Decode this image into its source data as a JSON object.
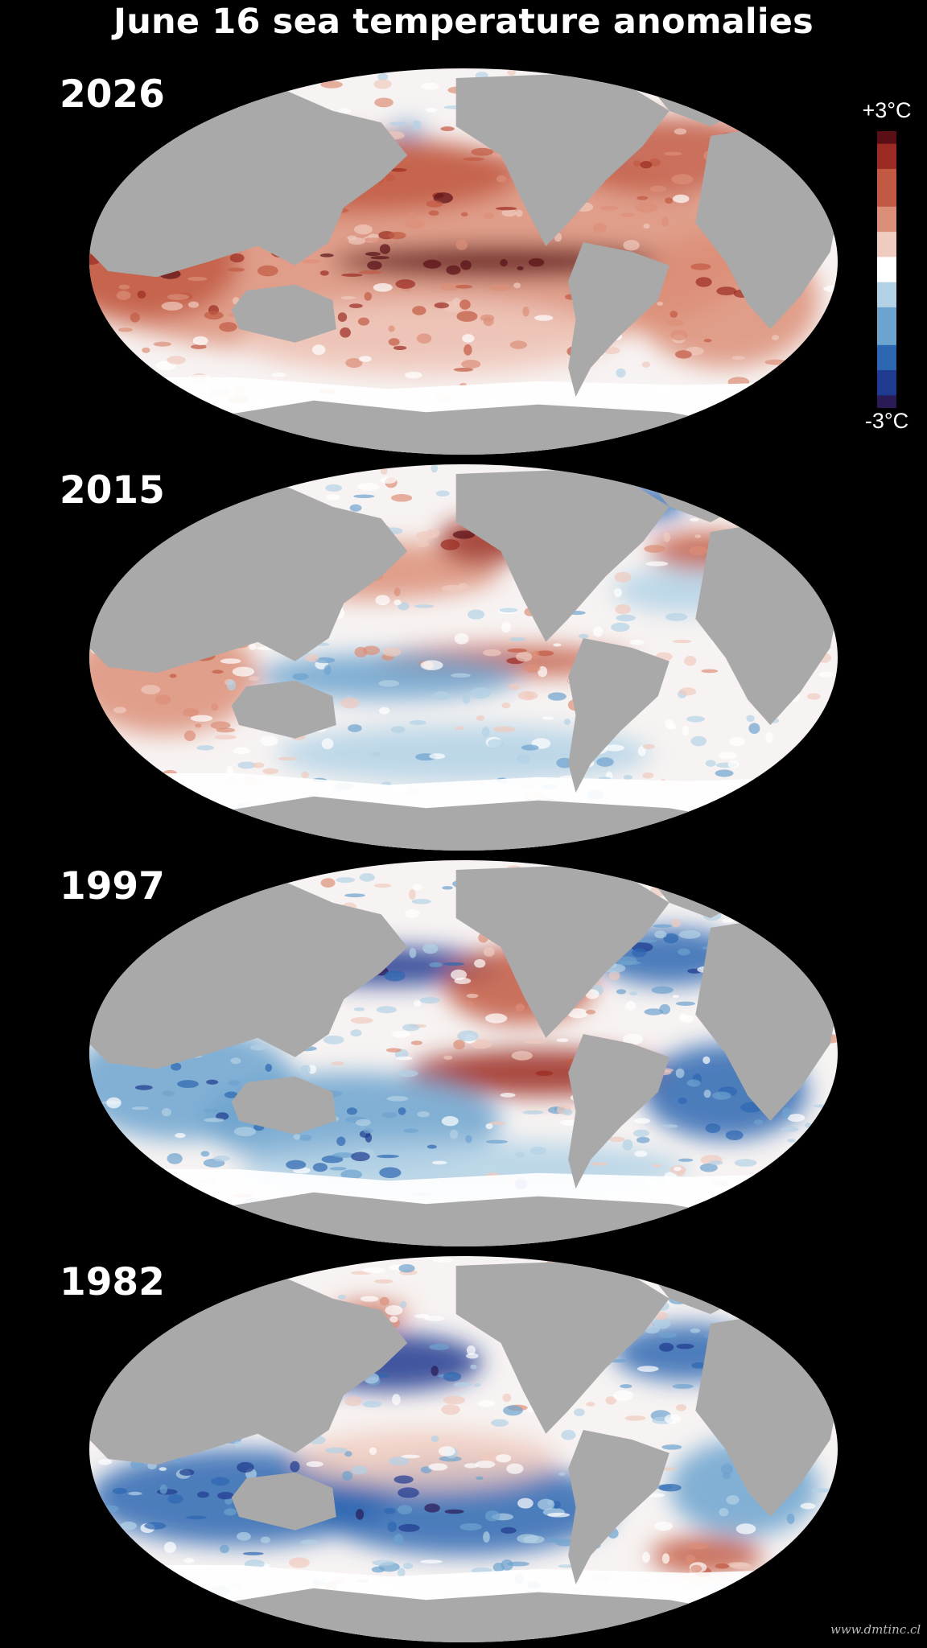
{
  "title": "June 16 sea temperature anomalies",
  "legend": {
    "max_label": "+3°C",
    "min_label": "-3°C",
    "max_value": 3,
    "min_value": -3,
    "unit": "°C"
  },
  "colors": {
    "background": "#000000",
    "land": "#a9a9a9",
    "ice": "#ffffff",
    "scale": [
      "#2a1a55",
      "#1f3b8f",
      "#2e67b1",
      "#6da3cf",
      "#b3d2e6",
      "#ffffff",
      "#f0cbbf",
      "#dc8f78",
      "#c25a43",
      "#9b2b22",
      "#5a0f17"
    ]
  },
  "panels": [
    {
      "year": "2026",
      "pattern": "strong-el-nino-warm"
    },
    {
      "year": "2015",
      "pattern": "el-nino-mixed"
    },
    {
      "year": "1997",
      "pattern": "el-nino-cool-surroundings"
    },
    {
      "year": "1982",
      "pattern": "mostly-cool"
    }
  ],
  "credit": "www.dmtinc.cl"
}
